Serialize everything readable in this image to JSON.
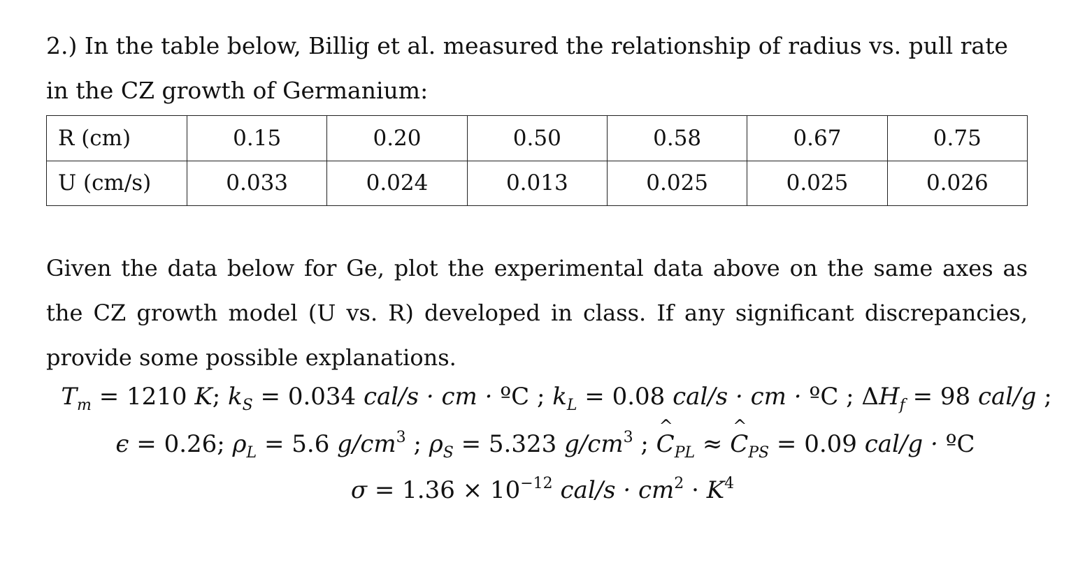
{
  "intro_text": "2.) In the table below, Billig et al. measured the relationship of radius vs. pull rate in the CZ growth of Germanium:",
  "table": {
    "rows": [
      {
        "label": "R (cm)",
        "values": [
          "0.15",
          "0.20",
          "0.50",
          "0.58",
          "0.67",
          "0.75"
        ]
      },
      {
        "label": "U (cm/s)",
        "values": [
          "0.033",
          "0.024",
          "0.013",
          "0.025",
          "0.025",
          "0.026"
        ]
      }
    ]
  },
  "given_text": "Given the data below for Ge, plot the experimental data above on the same axes as the CZ growth model (U vs. R) developed in class. If any significant discrepancies, provide some possible explanations.",
  "equations": {
    "line1": {
      "Tm_val": "1210",
      "kS_val": "0.034",
      "kL_val": "0.08",
      "dHf_val": "98"
    },
    "line2": {
      "eps_val": "0.26",
      "rhoL_val": "5.6",
      "rhoS_val": "5.323",
      "Cp_val": "0.09"
    },
    "line3": {
      "sigma_mantissa": "1.36",
      "sigma_exp": "−12"
    }
  }
}
